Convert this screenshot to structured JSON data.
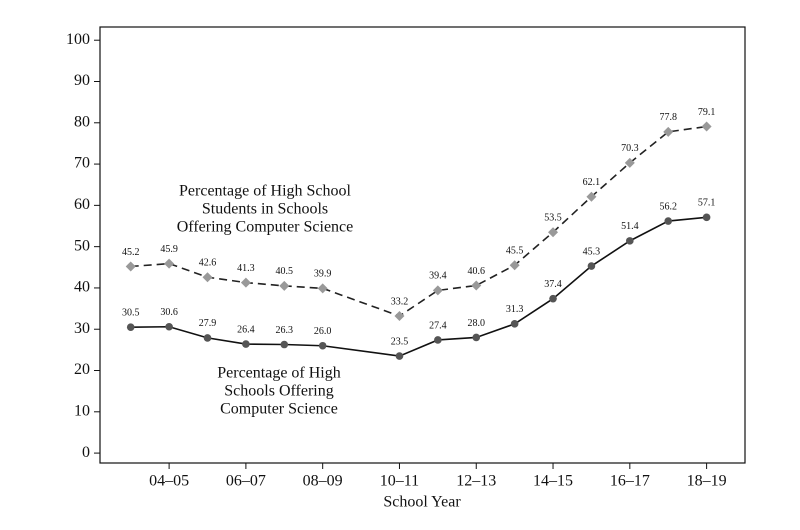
{
  "chart_data": {
    "type": "line",
    "x_label": "School Year",
    "x": [
      3,
      4,
      5,
      6,
      7,
      8,
      10,
      11,
      12,
      13,
      14,
      15,
      16,
      17,
      18
    ],
    "xlim": [
      2.2,
      19
    ],
    "xticks": [
      {
        "value": 4,
        "label": "04–05"
      },
      {
        "value": 6,
        "label": "06–07"
      },
      {
        "value": 8,
        "label": "08–09"
      },
      {
        "value": 10,
        "label": "10–11"
      },
      {
        "value": 12,
        "label": "12–13"
      },
      {
        "value": 14,
        "label": "14–15"
      },
      {
        "value": 16,
        "label": "16–17"
      },
      {
        "value": 18,
        "label": "18–19"
      }
    ],
    "ylim": [
      -2.4,
      103.2
    ],
    "yticks": [
      0,
      10,
      20,
      30,
      40,
      50,
      60,
      70,
      80,
      90,
      100
    ],
    "series": [
      {
        "color": "#999999",
        "line_color": "#222222",
        "dashed": true,
        "marker": "diamond",
        "values": [
          45.2,
          45.9,
          42.6,
          41.3,
          40.5,
          39.9,
          33.2,
          39.4,
          40.6,
          45.5,
          53.5,
          62.1,
          70.3,
          77.8,
          79.1
        ],
        "value_labels": [
          "45.2",
          "45.9",
          "42.6",
          "41.3",
          "40.5",
          "39.9",
          "33.2",
          "39.4",
          "40.6",
          "45.5",
          "53.5",
          "62.1",
          "70.3",
          "77.8",
          "79.1"
        ]
      },
      {
        "color": "#555555",
        "line_color": "#111111",
        "dashed": false,
        "marker": "circle",
        "values": [
          30.5,
          30.6,
          27.9,
          26.4,
          26.3,
          26.0,
          23.5,
          27.4,
          28.0,
          31.3,
          37.4,
          45.3,
          51.4,
          56.2,
          57.1
        ],
        "value_labels": [
          "30.5",
          "30.6",
          "27.9",
          "26.4",
          "26.3",
          "26.0",
          "23.5",
          "27.4",
          "28.0",
          "31.3",
          "37.4",
          "45.3",
          "51.4",
          "56.2",
          "57.1"
        ]
      }
    ],
    "annotations": [
      {
        "lines": [
          "Percentage of High School",
          "Students in Schools",
          "Offering Computer Science"
        ]
      },
      {
        "lines": [
          "Percentage of High",
          "Schools Offering",
          "Computer Science"
        ]
      }
    ]
  }
}
